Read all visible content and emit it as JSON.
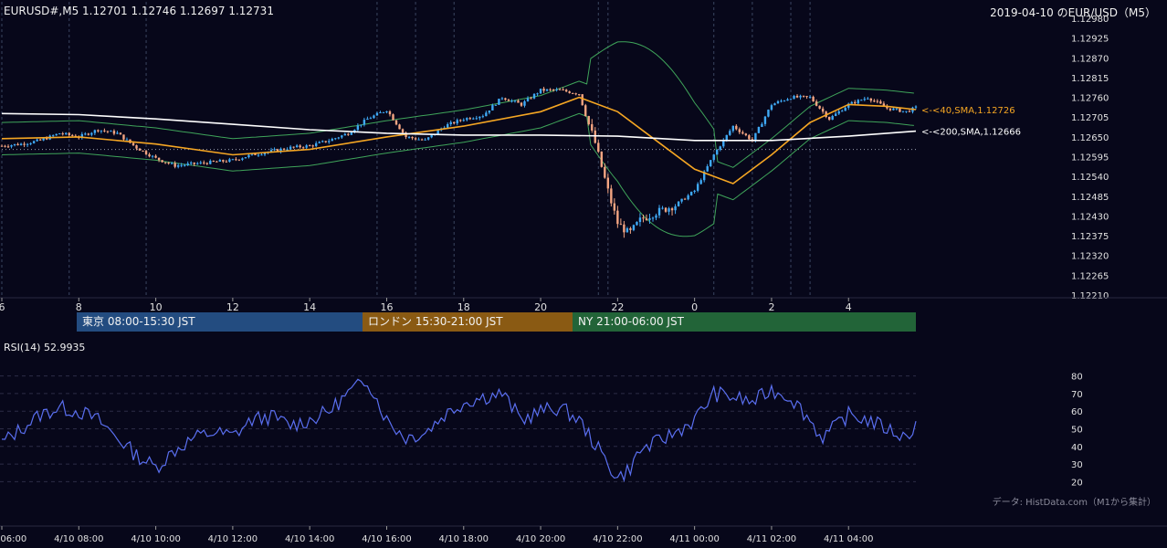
{
  "header": {
    "symbol_info": "EURUSD#,M5 1.12701 1.12746 1.12697 1.12731",
    "chart_title": "2019-04-10 のEUR/USD（M5）"
  },
  "colors": {
    "background": "#07071a",
    "bull_candle": "#3fa9f5",
    "bear_candle": "#f4a582",
    "sma40": "#f5a623",
    "sma200": "#ffffff",
    "bollinger": "#3fa45a",
    "rsi": "#5a6ff0",
    "grid": "#3a3a55",
    "session_tokyo": "#234c80",
    "session_london": "#8a5a13",
    "session_ny": "#226438"
  },
  "sessions": [
    {
      "label": "東京 08:00-15:30 JST",
      "color": "#234c80"
    },
    {
      "label": "ロンドン 15:30-21:00 JST",
      "color": "#8a5a13"
    },
    {
      "label": "NY 21:00-06:00 JST",
      "color": "#226438"
    }
  ],
  "indicator_labels": {
    "sma40": "<-<40,SMA,1.12726",
    "sma200": "<-<200,SMA,1.12666"
  },
  "rsi_label": "RSI(14) 52.9935",
  "credit": "データ: HistData.com（M1から集計）",
  "chart_data": [
    {
      "type": "candlestick",
      "title": "2019-04-10 のEUR/USD（M5）",
      "y_ticks": [
        1.1221,
        1.12265,
        1.1232,
        1.12375,
        1.1243,
        1.12485,
        1.1254,
        1.12595,
        1.1265,
        1.12705,
        1.1276,
        1.12815,
        1.1287,
        1.12925,
        1.1298
      ],
      "ylim": [
        1.1221,
        1.1298
      ],
      "x_hour_ticks": [
        "6",
        "8",
        "10",
        "12",
        "14",
        "16",
        "18",
        "20",
        "22",
        "0",
        "2",
        "4"
      ],
      "x_hour_values": [
        6,
        8,
        10,
        12,
        14,
        16,
        18,
        20,
        22,
        24,
        26,
        28
      ],
      "xlim": [
        6,
        29.75
      ],
      "prices_hourly": {
        "x": [
          6,
          6.5,
          7,
          7.5,
          8,
          8.5,
          9,
          9.5,
          10,
          10.5,
          11,
          11.5,
          12,
          12.5,
          13,
          13.5,
          14,
          14.5,
          15,
          15.5,
          16,
          16.5,
          17,
          17.5,
          18,
          18.5,
          19,
          19.5,
          20,
          20.5,
          21,
          21.2,
          21.4,
          21.6,
          21.8,
          22,
          22.3,
          22.6,
          23,
          23.5,
          24,
          24.5,
          25,
          25.5,
          26,
          26.5,
          27,
          27.5,
          28,
          28.5,
          29,
          29.5,
          29.75
        ],
        "close": [
          1.12625,
          1.1263,
          1.1264,
          1.1266,
          1.1265,
          1.1267,
          1.1266,
          1.1262,
          1.1259,
          1.1257,
          1.12575,
          1.1258,
          1.12585,
          1.126,
          1.1261,
          1.1262,
          1.12625,
          1.1264,
          1.1266,
          1.127,
          1.12725,
          1.1265,
          1.1264,
          1.1268,
          1.127,
          1.1271,
          1.1276,
          1.1274,
          1.1278,
          1.1278,
          1.1277,
          1.127,
          1.1264,
          1.1256,
          1.1248,
          1.1241,
          1.1238,
          1.1242,
          1.1244,
          1.1246,
          1.125,
          1.126,
          1.1268,
          1.1264,
          1.1274,
          1.1276,
          1.1276,
          1.127,
          1.1274,
          1.1276,
          1.1273,
          1.1272,
          1.12731
        ]
      },
      "series": [
        {
          "name": "SMA 40",
          "last": 1.12726,
          "x": [
            6,
            8,
            10,
            12,
            14,
            16,
            18,
            20,
            21,
            22,
            23,
            24,
            25,
            26,
            27,
            28,
            29,
            29.75
          ],
          "y": [
            1.12645,
            1.1265,
            1.1263,
            1.126,
            1.12615,
            1.1265,
            1.1268,
            1.1272,
            1.1276,
            1.1272,
            1.1264,
            1.1256,
            1.1252,
            1.126,
            1.1269,
            1.1274,
            1.12735,
            1.12726
          ]
        },
        {
          "name": "SMA 200",
          "last": 1.12666,
          "x": [
            6,
            8,
            10,
            12,
            14,
            16,
            18,
            20,
            22,
            24,
            26,
            28,
            29.75
          ],
          "y": [
            1.12715,
            1.12712,
            1.127,
            1.12685,
            1.1267,
            1.1266,
            1.12655,
            1.12655,
            1.12652,
            1.1264,
            1.1264,
            1.12652,
            1.12666
          ]
        }
      ],
      "reference_line": 1.12615
    },
    {
      "type": "line",
      "title": "RSI(14) 52.9935",
      "y_ticks": [
        20,
        30,
        40,
        50,
        60,
        70,
        80
      ],
      "ylim": [
        15,
        85
      ],
      "x_ticks": [
        "4/10 06:00",
        "4/10 08:00",
        "4/10 10:00",
        "4/10 12:00",
        "4/10 14:00",
        "4/10 16:00",
        "4/10 18:00",
        "4/10 20:00",
        "4/10 22:00",
        "4/11 00:00",
        "4/11 02:00",
        "4/11 04:00"
      ],
      "x_hour_values": [
        6,
        8,
        10,
        12,
        14,
        16,
        18,
        20,
        22,
        24,
        26,
        28
      ],
      "x": [
        6,
        6.5,
        7,
        7.5,
        8,
        8.5,
        9,
        9.5,
        10,
        10.5,
        11,
        11.5,
        12,
        12.5,
        13,
        13.5,
        14,
        14.5,
        15,
        15.5,
        16,
        16.5,
        17,
        17.5,
        18,
        18.5,
        19,
        19.5,
        20,
        20.5,
        21,
        21.3,
        21.6,
        22,
        22.3,
        22.6,
        23,
        23.5,
        24,
        24.5,
        25,
        25.5,
        26,
        26.5,
        27,
        27.3,
        27.6,
        28,
        28.5,
        29,
        29.5,
        29.75
      ],
      "values": [
        42,
        50,
        58,
        62,
        60,
        55,
        45,
        35,
        28,
        38,
        45,
        48,
        46,
        55,
        57,
        52,
        55,
        60,
        70,
        78,
        55,
        45,
        48,
        58,
        65,
        68,
        70,
        55,
        60,
        62,
        55,
        45,
        35,
        22,
        27,
        38,
        42,
        48,
        55,
        70,
        68,
        65,
        72,
        68,
        55,
        45,
        50,
        58,
        55,
        50,
        45,
        52.99
      ]
    }
  ]
}
